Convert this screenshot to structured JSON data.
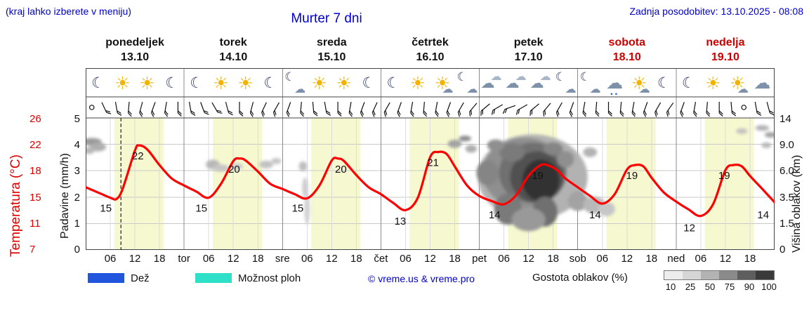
{
  "header": {
    "hint": "(kraj lahko izberete v meniju)",
    "title": "Murter 7 dni",
    "last_update": "Zadnja posodobitev: 13.10.2025 - 08:08"
  },
  "days": [
    {
      "name": "ponedeljek",
      "date": "13.10",
      "color": "#111111"
    },
    {
      "name": "torek",
      "date": "14.10",
      "color": "#111111"
    },
    {
      "name": "sreda",
      "date": "15.10",
      "color": "#111111"
    },
    {
      "name": "četrtek",
      "date": "16.10",
      "color": "#111111"
    },
    {
      "name": "petek",
      "date": "17.10",
      "color": "#111111"
    },
    {
      "name": "sobota",
      "date": "18.10",
      "color": "#cc0000"
    },
    {
      "name": "nedelja",
      "date": "19.10",
      "color": "#cc0000"
    }
  ],
  "icons": [
    "moon",
    "sun",
    "sun",
    "moon",
    "moon",
    "sun",
    "sun",
    "moon",
    "cloud-moon",
    "sun",
    "sun",
    "moon",
    "moon",
    "sun",
    "sun-cloud",
    "cloud-moon",
    "clouds",
    "clouds",
    "clouds",
    "cloud-moon",
    "cloud-moon",
    "cloud-rain",
    "sun-cloud",
    "moon",
    "moon",
    "sun",
    "sun-cloud",
    "cloud"
  ],
  "axes": {
    "temp_label": "Temperatura (°C)",
    "temp_ticks": [
      "26",
      "22",
      "18",
      "15",
      "11",
      "7"
    ],
    "precip_label": "Padavine (mm/h)",
    "precip_ticks": [
      "5",
      "4",
      "3",
      "2",
      "1",
      "0"
    ],
    "cloud_label": "Višina oblakov (km)",
    "cloud_ticks": [
      "14",
      "9.0",
      "6.0",
      "3.5",
      "1.5",
      "0"
    ],
    "hour_labels": [
      "06",
      "12",
      "18"
    ],
    "day_abbrevs": [
      "tor",
      "sre",
      "čet",
      "pet",
      "sob",
      "ned"
    ]
  },
  "legend": {
    "rain_label": "Dež",
    "showers_label": "Možnost ploh",
    "copyright": "© vreme.us & vreme.pro",
    "cloud_density_label": "Gostota oblakov (%)",
    "cloud_scale": [
      "10",
      "25",
      "50",
      "75",
      "90",
      "100"
    ],
    "cloud_scale_colors": [
      "#ededed",
      "#d6d6d6",
      "#b3b3b3",
      "#8a8a8a",
      "#5e5e5e",
      "#3a3a3a"
    ]
  },
  "colors": {
    "blue_text": "#0000cd",
    "red_text": "#e00000",
    "curve": "#ff0000",
    "day_band": "#f6f9cf",
    "rain": "#2255dd",
    "showers": "#2fe0c9",
    "weekend_red": "#cc0000"
  },
  "chart_data": {
    "type": "line",
    "title": "Murter 7 dni",
    "x_axis": {
      "unit": "hours from Mon 13.10 00:00",
      "range": [
        0,
        168
      ]
    },
    "temperature_axis_ticks_c": [
      26,
      22,
      18,
      15,
      11,
      7
    ],
    "precip_axis_ticks_mm_h": [
      5,
      4,
      3,
      2,
      1,
      0
    ],
    "cloud_height_axis_ticks_km": [
      14,
      9.0,
      6.0,
      3.5,
      1.5,
      0
    ],
    "daytime_band_hours": [
      7,
      19
    ],
    "now_line_hour": 8.6,
    "temperature_series": {
      "hours": [
        0,
        3,
        6,
        7.5,
        9,
        12,
        13,
        15,
        18,
        21,
        24,
        27,
        30,
        33,
        36,
        37.5,
        39,
        42,
        45,
        48,
        51,
        54,
        57,
        60,
        61.5,
        63,
        66,
        69,
        72,
        75,
        78,
        81,
        84,
        86,
        88,
        90,
        93,
        96,
        99,
        102,
        105,
        108,
        111,
        113,
        115,
        117,
        120,
        123,
        126,
        129,
        132,
        134,
        136,
        138,
        141,
        144,
        147,
        150,
        153,
        156,
        158,
        160,
        162,
        165,
        168
      ],
      "values_c": [
        16.2,
        15.6,
        15.0,
        14.8,
        16.0,
        21.2,
        22.0,
        21.4,
        19.0,
        17.2,
        16.4,
        15.7,
        15.0,
        16.6,
        19.6,
        20.0,
        19.7,
        18.0,
        16.6,
        16.0,
        15.4,
        14.9,
        16.4,
        19.7,
        20.0,
        19.6,
        17.6,
        16.2,
        15.4,
        14.2,
        13.1,
        15.0,
        20.2,
        21.0,
        20.7,
        18.8,
        16.4,
        15.2,
        14.5,
        14.0,
        15.3,
        17.5,
        19.0,
        18.9,
        18.2,
        17.2,
        16.2,
        15.2,
        14.1,
        15.4,
        18.3,
        19.0,
        18.8,
        17.3,
        15.6,
        14.4,
        13.2,
        12.2,
        14.0,
        18.2,
        19.0,
        18.8,
        17.5,
        16.0,
        14.3
      ]
    },
    "temperature_labels": [
      {
        "hour": 5.2,
        "temp": 15,
        "text": "15"
      },
      {
        "hour": 13.0,
        "temp": 22,
        "text": "22"
      },
      {
        "hour": 28.5,
        "temp": 15,
        "text": "15"
      },
      {
        "hour": 36.5,
        "temp": 20,
        "text": "20"
      },
      {
        "hour": 52.0,
        "temp": 15,
        "text": "15"
      },
      {
        "hour": 62.5,
        "temp": 20,
        "text": "20"
      },
      {
        "hour": 77.0,
        "temp": 13,
        "text": "13"
      },
      {
        "hour": 85.0,
        "temp": 21,
        "text": "21"
      },
      {
        "hour": 100.0,
        "temp": 14,
        "text": "14"
      },
      {
        "hour": 110.5,
        "temp": 19,
        "text": "19"
      },
      {
        "hour": 124.5,
        "temp": 14,
        "text": "14"
      },
      {
        "hour": 133.5,
        "temp": 19,
        "text": "19"
      },
      {
        "hour": 147.5,
        "temp": 12,
        "text": "12"
      },
      {
        "hour": 156.0,
        "temp": 19,
        "text": "19"
      },
      {
        "hour": 165.5,
        "temp": 14,
        "text": "14"
      }
    ],
    "clouds": [
      {
        "hour": 1.5,
        "km": 9.5,
        "rx_h": 2.4,
        "ry_km": 0.65,
        "pct": 40
      },
      {
        "hour": 3.0,
        "km": 8.7,
        "rx_h": 2.0,
        "ry_km": 0.55,
        "pct": 30
      },
      {
        "hour": 0.8,
        "km": 8.3,
        "rx_h": 1.4,
        "ry_km": 0.4,
        "pct": 25
      },
      {
        "hour": 31.0,
        "km": 6.7,
        "rx_h": 1.7,
        "ry_km": 0.55,
        "pct": 25
      },
      {
        "hour": 33.0,
        "km": 6.3,
        "rx_h": 2.0,
        "ry_km": 0.4,
        "pct": 18
      },
      {
        "hour": 37.0,
        "km": 6.5,
        "rx_h": 1.4,
        "ry_km": 0.35,
        "pct": 15
      },
      {
        "hour": 44.0,
        "km": 6.7,
        "rx_h": 1.7,
        "ry_km": 0.45,
        "pct": 20
      },
      {
        "hour": 46.5,
        "km": 7.1,
        "rx_h": 1.2,
        "ry_km": 0.35,
        "pct": 18
      },
      {
        "hour": 53.0,
        "km": 6.5,
        "rx_h": 1.0,
        "ry_km": 0.55,
        "pct": 22
      },
      {
        "hour": 53.5,
        "km": 4.4,
        "rx_h": 0.7,
        "ry_km": 0.95,
        "pct": 15
      },
      {
        "hour": 54.0,
        "km": 2.6,
        "rx_h": 0.7,
        "ry_km": 1.2,
        "pct": 12
      },
      {
        "hour": 90.0,
        "km": 9.1,
        "rx_h": 1.7,
        "ry_km": 0.6,
        "pct": 35
      },
      {
        "hour": 92.5,
        "km": 10.1,
        "rx_h": 1.5,
        "ry_km": 0.55,
        "pct": 45
      },
      {
        "hour": 94.0,
        "km": 8.5,
        "rx_h": 1.4,
        "ry_km": 0.45,
        "pct": 30
      },
      {
        "hour": 109.0,
        "km": 5.4,
        "rx_h": 13.4,
        "ry_km": 4.1,
        "pct": 28
      },
      {
        "hour": 107.0,
        "km": 5.8,
        "rx_h": 10.3,
        "ry_km": 3.5,
        "pct": 45
      },
      {
        "hour": 109.0,
        "km": 5.8,
        "rx_h": 8.2,
        "ry_km": 3.0,
        "pct": 60
      },
      {
        "hour": 110.0,
        "km": 5.4,
        "rx_h": 6.5,
        "ry_km": 2.5,
        "pct": 75
      },
      {
        "hour": 111.0,
        "km": 5.1,
        "rx_h": 4.5,
        "ry_km": 2.0,
        "pct": 90
      },
      {
        "hour": 104.0,
        "km": 8.1,
        "rx_h": 3.1,
        "ry_km": 1.1,
        "pct": 55
      },
      {
        "hour": 100.0,
        "km": 8.9,
        "rx_h": 2.1,
        "ry_km": 0.8,
        "pct": 45
      },
      {
        "hour": 114.0,
        "km": 8.5,
        "rx_h": 2.4,
        "ry_km": 0.8,
        "pct": 50
      },
      {
        "hour": 117.0,
        "km": 7.3,
        "rx_h": 2.1,
        "ry_km": 0.95,
        "pct": 45
      },
      {
        "hour": 98.0,
        "km": 5.8,
        "rx_h": 2.7,
        "ry_km": 1.3,
        "pct": 50
      },
      {
        "hour": 103.0,
        "km": 2.6,
        "rx_h": 3.4,
        "ry_km": 1.2,
        "pct": 55
      },
      {
        "hour": 112.0,
        "km": 2.4,
        "rx_h": 3.1,
        "ry_km": 1.1,
        "pct": 60
      },
      {
        "hour": 108.0,
        "km": 1.8,
        "rx_h": 4.1,
        "ry_km": 0.8,
        "pct": 40
      },
      {
        "hour": 120.0,
        "km": 3.2,
        "rx_h": 2.4,
        "ry_km": 0.8,
        "pct": 35
      },
      {
        "hour": 124.0,
        "km": 2.9,
        "rx_h": 2.7,
        "ry_km": 0.65,
        "pct": 25
      },
      {
        "hour": 127.0,
        "km": 2.6,
        "rx_h": 2.1,
        "ry_km": 0.55,
        "pct": 18
      },
      {
        "hour": 123.0,
        "km": 8.1,
        "rx_h": 1.7,
        "ry_km": 0.55,
        "pct": 28
      },
      {
        "hour": 160.0,
        "km": 11.5,
        "rx_h": 1.4,
        "ry_km": 0.4,
        "pct": 20
      },
      {
        "hour": 165.0,
        "km": 12.1,
        "rx_h": 1.7,
        "ry_km": 0.45,
        "pct": 28
      },
      {
        "hour": 167.0,
        "km": 10.8,
        "rx_h": 1.4,
        "ry_km": 0.4,
        "pct": 35
      },
      {
        "hour": 166.0,
        "km": 8.9,
        "rx_h": 1.2,
        "ry_km": 0.35,
        "pct": 25
      }
    ],
    "wind_barbs_deg": [
      null,
      65,
      80,
      95,
      105,
      110,
      100,
      90,
      80,
      70,
      60,
      75,
      90,
      105,
      115,
      120,
      110,
      95,
      85,
      80,
      90,
      100,
      110,
      115,
      120,
      110,
      100,
      95,
      100,
      110,
      120,
      130,
      140,
      150,
      160,
      150,
      140,
      130,
      120,
      110,
      100,
      95,
      90,
      95,
      100,
      110,
      120,
      125,
      110,
      100,
      95,
      90,
      85,
      null,
      80,
      75
    ]
  }
}
